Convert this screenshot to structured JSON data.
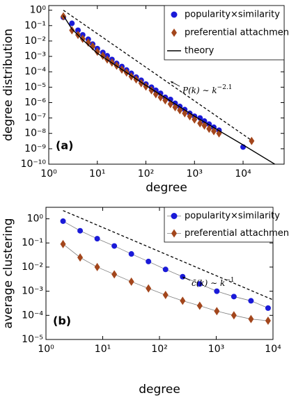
{
  "chart_data": [
    {
      "type": "scatter",
      "panel_label": "(a)",
      "xlabel": "degree",
      "ylabel": "degree distribution",
      "xlog": true,
      "ylog": true,
      "legend": "upper right",
      "xlim": [
        1,
        70000
      ],
      "ylim": [
        1e-10,
        2
      ],
      "xticks": [
        {
          "value": 1,
          "label": "10⁰"
        },
        {
          "value": 10,
          "label": "10¹"
        },
        {
          "value": 100,
          "label": "10²"
        },
        {
          "value": 1000,
          "label": "10³"
        },
        {
          "value": 10000,
          "label": "10⁴"
        }
      ],
      "yticks": [
        {
          "value": 1,
          "label": "10⁰"
        },
        {
          "value": 0.1,
          "label": "10⁻¹"
        },
        {
          "value": 0.01,
          "label": "10⁻²"
        },
        {
          "value": 0.001,
          "label": "10⁻³"
        },
        {
          "value": 0.0001,
          "label": "10⁻⁴"
        },
        {
          "value": 1e-05,
          "label": "10⁻⁵"
        },
        {
          "value": 1e-06,
          "label": "10⁻⁶"
        },
        {
          "value": 1e-07,
          "label": "10⁻⁷"
        },
        {
          "value": 1e-08,
          "label": "10⁻⁸"
        },
        {
          "value": 1e-09,
          "label": "10⁻⁹"
        },
        {
          "value": 1e-10,
          "label": "10⁻¹⁰"
        }
      ],
      "series": [
        {
          "name": "popularity×similarity",
          "color": "#1a1ad8",
          "marker": "circle",
          "x": [
            2,
            3,
            4,
            5,
            6.5,
            8,
            10,
            13,
            16,
            20,
            25,
            32,
            40,
            50,
            63,
            80,
            100,
            130,
            160,
            200,
            250,
            320,
            400,
            500,
            630,
            800,
            1000,
            1300,
            1600,
            2000,
            2500,
            3200,
            10000
          ],
          "values": [
            0.35,
            0.14,
            0.05,
            0.025,
            0.013,
            0.0063,
            0.0032,
            0.0018,
            0.0011,
            0.00063,
            0.00035,
            0.00022,
            0.00013,
            8e-05,
            4.5e-05,
            2.8e-05,
            1.6e-05,
            1e-05,
            6.3e-06,
            4e-06,
            2.2e-06,
            1.6e-06,
            9e-07,
            5.6e-07,
            3.5e-07,
            2e-07,
            1.3e-07,
            1e-07,
            6.3e-08,
            4e-08,
            2.5e-08,
            1.6e-08,
            1.3e-09
          ]
        },
        {
          "name": "preferential attachment",
          "color": "#a3461c",
          "marker": "diamond",
          "x": [
            2,
            3,
            4,
            5,
            6.5,
            8,
            10,
            13,
            16,
            20,
            25,
            32,
            40,
            50,
            63,
            80,
            100,
            130,
            160,
            200,
            250,
            320,
            400,
            500,
            630,
            800,
            1000,
            1300,
            1600,
            2000,
            2500,
            3200,
            15000
          ],
          "values": [
            0.4,
            0.05,
            0.025,
            0.014,
            0.008,
            0.0045,
            0.002,
            0.0011,
            0.00063,
            0.0004,
            0.00025,
            0.00014,
            9e-05,
            5e-05,
            3.2e-05,
            1.8e-05,
            1.1e-05,
            6.3e-06,
            3.5e-06,
            2.2e-06,
            1.4e-06,
            8e-07,
            5e-07,
            3.2e-07,
            2e-07,
            1.3e-07,
            8e-08,
            4.5e-08,
            3.2e-08,
            2e-08,
            1.4e-08,
            1e-08,
            3.2e-09
          ]
        },
        {
          "name": "theory",
          "color": "#000000",
          "marker": "none",
          "line_color": "#000000",
          "x": [
            2,
            3,
            5,
            10,
            100,
            1000,
            10000,
            45000
          ],
          "values": [
            0.45,
            0.06,
            0.012,
            0.0016,
            1.3e-05,
            1.3e-07,
            1.8e-09,
            1e-10
          ]
        }
      ],
      "reference": {
        "x": [
          2,
          15000
        ],
        "values": [
          1,
          3.5e-09
        ]
      },
      "annotation": {
        "text": "P(k) ∼ k",
        "exponent": "−2.1"
      }
    },
    {
      "type": "scatter",
      "panel_label": "(b)",
      "xlabel": "degree",
      "ylabel": "average clustering",
      "xlog": true,
      "ylog": true,
      "legend": "upper right",
      "xlim": [
        1,
        10000
      ],
      "ylim": [
        1e-05,
        3
      ],
      "xticks": [
        {
          "value": 1,
          "label": "10⁰"
        },
        {
          "value": 10,
          "label": "10¹"
        },
        {
          "value": 100,
          "label": "10²"
        },
        {
          "value": 1000,
          "label": "10³"
        },
        {
          "value": 10000,
          "label": "10⁴"
        }
      ],
      "yticks": [
        {
          "value": 1,
          "label": "10⁰"
        },
        {
          "value": 0.1,
          "label": "10⁻¹"
        },
        {
          "value": 0.01,
          "label": "10⁻²"
        },
        {
          "value": 0.001,
          "label": "10⁻³"
        },
        {
          "value": 0.0001,
          "label": "10⁻⁴"
        },
        {
          "value": 1e-05,
          "label": "10⁻⁵"
        }
      ],
      "series": [
        {
          "name": "popularity×similarity",
          "color": "#1a1ad8",
          "marker": "circle",
          "line_color": "#808080",
          "x": [
            2,
            4,
            8,
            16,
            32,
            64,
            128,
            256,
            512,
            1024,
            2048,
            4096,
            8192
          ],
          "values": [
            0.8,
            0.32,
            0.15,
            0.075,
            0.035,
            0.017,
            0.008,
            0.004,
            0.002,
            0.001,
            0.0006,
            0.0004,
            0.0002
          ]
        },
        {
          "name": "preferential attachment",
          "color": "#a3461c",
          "marker": "diamond",
          "line_color": "#808080",
          "x": [
            2,
            4,
            8,
            16,
            32,
            64,
            128,
            256,
            512,
            1024,
            2048,
            4096,
            8192
          ],
          "values": [
            0.09,
            0.025,
            0.01,
            0.005,
            0.0025,
            0.0013,
            0.0007,
            0.0004,
            0.00025,
            0.00015,
            0.0001,
            7e-05,
            6e-05
          ]
        }
      ],
      "reference": {
        "x": [
          2,
          10000
        ],
        "values": [
          2.2,
          0.00044
        ]
      },
      "annotation": {
        "text": "c̄(k) ∼ k",
        "exponent": "−1"
      }
    }
  ]
}
